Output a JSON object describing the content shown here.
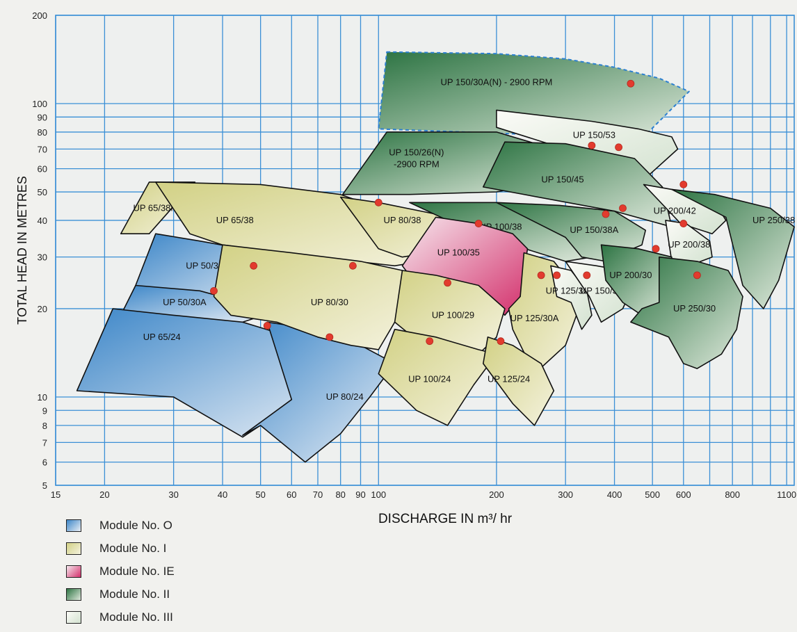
{
  "chart_data": {
    "type": "area",
    "title": "",
    "xlabel": "DISCHARGE IN m³/ hr",
    "ylabel": "TOTAL HEAD IN METRES",
    "x_scale": "log",
    "y_scale": "log",
    "xlim": [
      15,
      1150
    ],
    "ylim": [
      5,
      200
    ],
    "x_ticks": [
      15,
      20,
      30,
      40,
      50,
      60,
      70,
      80,
      90,
      100,
      200,
      300,
      400,
      500,
      600,
      800,
      1100
    ],
    "y_ticks": [
      5,
      6,
      7,
      8,
      9,
      10,
      20,
      30,
      40,
      50,
      60,
      70,
      80,
      90,
      100,
      200
    ],
    "grid": true,
    "legend": {
      "placement": "bottom-left",
      "items": [
        {
          "module": "O",
          "label": "Module No. O",
          "color": "#3f8ccc"
        },
        {
          "module": "I",
          "label": "Module No. I",
          "color": "#d5d58a"
        },
        {
          "module": "IE",
          "label": "Module No. IE",
          "color": "#d8356f"
        },
        {
          "module": "II",
          "label": "Module No. II",
          "color": "#2e7a45"
        },
        {
          "module": "III",
          "label": "Module No. III",
          "color": "#dfe8d8"
        }
      ]
    },
    "regions": [
      {
        "name": "UP 150/30A(N) - 2900 RPM",
        "module": "II",
        "dashed": true,
        "polygon": [
          [
            105,
            150
          ],
          [
            200,
            148
          ],
          [
            300,
            142
          ],
          [
            400,
            133
          ],
          [
            520,
            122
          ],
          [
            620,
            110
          ],
          [
            470,
            76
          ],
          [
            100,
            82
          ]
        ],
        "label_at": [
          200,
          118
        ],
        "bep": [
          440,
          117
        ]
      },
      {
        "name": "UP 150/26(N)\n-2900 RPM",
        "module": "II",
        "dashed": false,
        "polygon": [
          [
            105,
            80
          ],
          [
            200,
            80
          ],
          [
            280,
            70
          ],
          [
            300,
            55
          ],
          [
            200,
            50
          ],
          [
            120,
            49
          ],
          [
            81,
            49
          ]
        ],
        "label_at": [
          125,
          65
        ]
      },
      {
        "name": "UP 150/53",
        "module": "III",
        "dashed": false,
        "polygon": [
          [
            200,
            95
          ],
          [
            350,
            87
          ],
          [
            460,
            82
          ],
          [
            560,
            77
          ],
          [
            580,
            70
          ],
          [
            475,
            55
          ],
          [
            400,
            62
          ],
          [
            200,
            83
          ]
        ],
        "label_at": [
          355,
          78
        ]
      },
      {
        "name": "UP 150/45",
        "module": "II",
        "dashed": false,
        "polygon": [
          [
            210,
            74
          ],
          [
            300,
            73
          ],
          [
            450,
            65
          ],
          [
            530,
            52
          ],
          [
            560,
            38
          ],
          [
            400,
            43
          ],
          [
            200,
            51
          ],
          [
            185,
            52
          ]
        ],
        "label_at": [
          295,
          55
        ],
        "bep": [
          415,
          72
        ]
      },
      {
        "name": "UP 200/42",
        "module": "III",
        "dashed": false,
        "polygon": [
          [
            475,
            53
          ],
          [
            560,
            51
          ],
          [
            730,
            45
          ],
          [
            770,
            40
          ],
          [
            710,
            36
          ],
          [
            590,
            39
          ],
          [
            560,
            42
          ]
        ],
        "label_at": [
          570,
          43
        ]
      },
      {
        "name": "UP 250/38",
        "module": "II",
        "dashed": false,
        "polygon": [
          [
            560,
            51
          ],
          [
            720,
            49
          ],
          [
            1000,
            44
          ],
          [
            1150,
            38
          ],
          [
            1050,
            25
          ],
          [
            960,
            20
          ],
          [
            850,
            24
          ],
          [
            770,
            41
          ]
        ],
        "label_at": [
          1020,
          40
        ]
      },
      {
        "name": "UP 65/38M",
        "module": "I",
        "dashed": false,
        "polygon": [
          [
            26,
            54
          ],
          [
            34,
            54
          ],
          [
            26,
            36
          ],
          [
            22,
            36
          ]
        ],
        "label_at": [
          27,
          44
        ]
      },
      {
        "name": "UP 65/38",
        "module": "I",
        "dashed": false,
        "polygon": [
          [
            27,
            54
          ],
          [
            50,
            53
          ],
          [
            80,
            49
          ],
          [
            122,
            40
          ],
          [
            150,
            30
          ],
          [
            110,
            28
          ],
          [
            70,
            30
          ],
          [
            40,
            33
          ],
          [
            33,
            36
          ]
        ],
        "label_at": [
          43,
          40
        ]
      },
      {
        "name": "UP 80/38",
        "module": "I",
        "dashed": false,
        "polygon": [
          [
            80,
            48
          ],
          [
            100,
            46
          ],
          [
            140,
            42
          ],
          [
            170,
            39
          ],
          [
            135,
            31
          ],
          [
            115,
            30
          ],
          [
            100,
            32
          ]
        ],
        "label_at": [
          115,
          40
        ]
      },
      {
        "name": "UP 100/38",
        "module": "II",
        "dashed": false,
        "polygon": [
          [
            120,
            46
          ],
          [
            200,
            46
          ],
          [
            300,
            38
          ],
          [
            350,
            30
          ],
          [
            300,
            29
          ],
          [
            220,
            33
          ],
          [
            150,
            40
          ]
        ],
        "label_at": [
          205,
          38
        ]
      },
      {
        "name": "UP 150/38A",
        "module": "II",
        "dashed": false,
        "polygon": [
          [
            200,
            46
          ],
          [
            290,
            45
          ],
          [
            400,
            43
          ],
          [
            480,
            37
          ],
          [
            470,
            33
          ],
          [
            420,
            31
          ],
          [
            380,
            29
          ],
          [
            330,
            30
          ],
          [
            300,
            35
          ]
        ],
        "label_at": [
          355,
          37
        ]
      },
      {
        "name": "UP 200/38",
        "module": "III",
        "dashed": false,
        "polygon": [
          [
            540,
            40
          ],
          [
            610,
            39
          ],
          [
            700,
            34
          ],
          [
            710,
            30
          ],
          [
            620,
            28
          ],
          [
            560,
            29
          ]
        ],
        "label_at": [
          620,
          33
        ]
      },
      {
        "name": "UP 100/35",
        "module": "IE",
        "dashed": false,
        "polygon": [
          [
            140,
            41
          ],
          [
            180,
            39
          ],
          [
            220,
            36
          ],
          [
            240,
            32
          ],
          [
            230,
            22
          ],
          [
            210,
            19
          ],
          [
            180,
            23
          ],
          [
            120,
            26
          ],
          [
            115,
            28
          ]
        ],
        "label_at": [
          160,
          31
        ]
      },
      {
        "name": "UP 50/30",
        "module": "O",
        "dashed": false,
        "polygon": [
          [
            27,
            36
          ],
          [
            35,
            34
          ],
          [
            45,
            32
          ],
          [
            53,
            27
          ],
          [
            55,
            20
          ],
          [
            40,
            20
          ],
          [
            28,
            21
          ],
          [
            24,
            24
          ]
        ],
        "label_at": [
          36,
          28
        ]
      },
      {
        "name": "UP 50/30A",
        "module": "O",
        "dashed": false,
        "polygon": [
          [
            24,
            24
          ],
          [
            35,
            23
          ],
          [
            45,
            21
          ],
          [
            51,
            19
          ],
          [
            45,
            18
          ],
          [
            36,
            18
          ],
          [
            22,
            19
          ]
        ],
        "label_at": [
          32,
          21
        ]
      },
      {
        "name": "UP 65/24",
        "module": "O",
        "dashed": false,
        "polygon": [
          [
            21,
            20
          ],
          [
            30,
            19
          ],
          [
            45,
            18
          ],
          [
            60,
            16
          ],
          [
            80,
            14
          ],
          [
            75,
            12
          ],
          [
            60,
            9.4
          ],
          [
            45,
            7.3
          ],
          [
            30,
            10
          ],
          [
            17,
            10.5
          ]
        ],
        "label_at": [
          28,
          16
        ]
      },
      {
        "name": "UP 80/24",
        "module": "O",
        "dashed": false,
        "polygon": [
          [
            52,
            18
          ],
          [
            60,
            17.5
          ],
          [
            70,
            16
          ],
          [
            90,
            15
          ],
          [
            110,
            13
          ],
          [
            95,
            10
          ],
          [
            80,
            7.5
          ],
          [
            65,
            6
          ],
          [
            50,
            8
          ],
          [
            45,
            7.4
          ],
          [
            60,
            9.8
          ]
        ],
        "label_at": [
          82,
          10
        ]
      },
      {
        "name": "UP 80/30",
        "module": "I",
        "dashed": false,
        "polygon": [
          [
            40,
            33
          ],
          [
            60,
            31
          ],
          [
            90,
            29
          ],
          [
            115,
            27
          ],
          [
            120,
            22
          ],
          [
            110,
            18
          ],
          [
            100,
            14.5
          ],
          [
            85,
            15
          ],
          [
            70,
            16
          ],
          [
            55,
            18
          ],
          [
            42,
            19
          ],
          [
            38,
            22
          ]
        ],
        "label_at": [
          75,
          21
        ]
      },
      {
        "name": "UP 100/29",
        "module": "I",
        "dashed": false,
        "polygon": [
          [
            115,
            27
          ],
          [
            140,
            26
          ],
          [
            180,
            24
          ],
          [
            210,
            20
          ],
          [
            200,
            16
          ],
          [
            180,
            14
          ],
          [
            160,
            14
          ],
          [
            130,
            15
          ],
          [
            110,
            18
          ]
        ],
        "label_at": [
          155,
          19
        ]
      },
      {
        "name": "UP 100/24",
        "module": "I",
        "dashed": false,
        "polygon": [
          [
            110,
            17
          ],
          [
            140,
            16
          ],
          [
            180,
            14.5
          ],
          [
            200,
            14
          ],
          [
            175,
            11
          ],
          [
            150,
            8
          ],
          [
            125,
            9
          ],
          [
            100,
            12
          ]
        ],
        "label_at": [
          135,
          11.5
        ]
      },
      {
        "name": "UP 125/30A",
        "module": "I",
        "dashed": false,
        "polygon": [
          [
            235,
            31
          ],
          [
            280,
            29
          ],
          [
            330,
            22
          ],
          [
            320,
            19
          ],
          [
            300,
            15
          ],
          [
            250,
            12
          ],
          [
            220,
            17
          ],
          [
            215,
            20
          ],
          [
            230,
            22
          ]
        ],
        "label_at": [
          250,
          18.5
        ]
      },
      {
        "name": "UP 125/24",
        "module": "I",
        "dashed": false,
        "polygon": [
          [
            190,
            16
          ],
          [
            220,
            15
          ],
          [
            260,
            13
          ],
          [
            280,
            10.5
          ],
          [
            250,
            8
          ],
          [
            220,
            9.5
          ],
          [
            185,
            13
          ]
        ],
        "label_at": [
          215,
          11.5
        ]
      },
      {
        "name": "UP 125/30B",
        "module": "III",
        "dashed": false,
        "polygon": [
          [
            275,
            28
          ],
          [
            310,
            27
          ],
          [
            340,
            23
          ],
          [
            350,
            19
          ],
          [
            330,
            17
          ],
          [
            310,
            21
          ],
          [
            285,
            22
          ]
        ],
        "label_at": [
          308,
          23
        ]
      },
      {
        "name": "UP 150/30",
        "module": "III",
        "dashed": false,
        "polygon": [
          [
            300,
            29
          ],
          [
            360,
            28
          ],
          [
            420,
            27
          ],
          [
            440,
            23
          ],
          [
            420,
            20
          ],
          [
            370,
            18
          ],
          [
            345,
            22
          ]
        ],
        "label_at": [
          370,
          23
        ]
      },
      {
        "name": "UP 200/30",
        "module": "II",
        "dashed": false,
        "polygon": [
          [
            370,
            33
          ],
          [
            460,
            32
          ],
          [
            560,
            30
          ],
          [
            560,
            24
          ],
          [
            520,
            21
          ],
          [
            470,
            19
          ],
          [
            420,
            21
          ],
          [
            380,
            25
          ]
        ],
        "label_at": [
          440,
          26
        ]
      },
      {
        "name": "UP 250/30",
        "module": "II",
        "dashed": false,
        "polygon": [
          [
            520,
            30
          ],
          [
            650,
            29
          ],
          [
            780,
            27
          ],
          [
            850,
            22
          ],
          [
            820,
            17
          ],
          [
            750,
            14
          ],
          [
            650,
            12.5
          ],
          [
            600,
            13
          ],
          [
            550,
            16
          ],
          [
            440,
            18
          ],
          [
            470,
            20
          ],
          [
            520,
            21
          ]
        ],
        "label_at": [
          640,
          20
        ]
      }
    ],
    "bep_points": [
      [
        440,
        117
      ],
      [
        350,
        72
      ],
      [
        410,
        71
      ],
      [
        600,
        53
      ],
      [
        100,
        46
      ],
      [
        180,
        39
      ],
      [
        420,
        44
      ],
      [
        380,
        42
      ],
      [
        600,
        39
      ],
      [
        48,
        28
      ],
      [
        86,
        28
      ],
      [
        510,
        32
      ],
      [
        38,
        23
      ],
      [
        52,
        17.5
      ],
      [
        75,
        16
      ],
      [
        150,
        24.5
      ],
      [
        135,
        15.5
      ],
      [
        205,
        15.5
      ],
      [
        285,
        26
      ],
      [
        260,
        26
      ],
      [
        340,
        26
      ],
      [
        650,
        26
      ]
    ]
  }
}
